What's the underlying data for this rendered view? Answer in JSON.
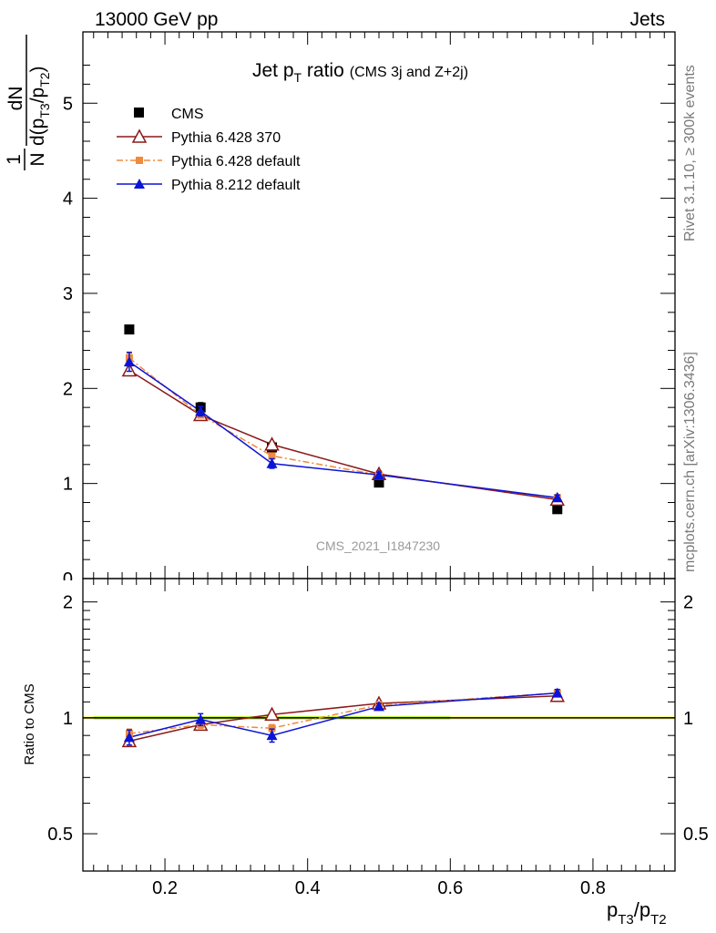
{
  "header": {
    "energy_label": "13000 GeV pp",
    "process_label": "Jets"
  },
  "side_labels": {
    "rivet": "Rivet 3.1.10, ≥ 300k events",
    "mcplots": "mcplots.cern.ch [arXiv:1306.3436]"
  },
  "plot": {
    "title_main": "Jet p",
    "title_sub": "T",
    "title_tail": " ratio",
    "title_note": "(CMS 3j and Z+2j)",
    "watermark": "CMS_2021_I1847230",
    "ylabel_top_num": "1",
    "ylabel_top_den": "N",
    "ylabel_dN": "dN",
    "ylabel_d": "d(p",
    "ylabel_T3": "T3",
    "ylabel_slash": "/p",
    "ylabel_T2": "T2",
    "ylabel_close": ")",
    "ratio_ylabel": "Ratio to CMS",
    "xlabel_p1": "p",
    "xlabel_T3": "T3",
    "xlabel_slash": "/p",
    "xlabel_T2": "T2"
  },
  "colors": {
    "cms": "#000000",
    "py6_370": "#8b1a1a",
    "py6_default": "#f08a3c",
    "py8_default": "#0b14d6",
    "band_green": "#bff23a",
    "band_yellow": "#ffff88"
  },
  "chart_data": [
    {
      "type": "scatter",
      "panel": "main",
      "x": [
        0.15,
        0.25,
        0.35,
        0.5,
        0.75
      ],
      "xlim": [
        0.085,
        0.915
      ],
      "ylim": [
        0,
        5.75
      ],
      "yticks": [
        0,
        1,
        2,
        3,
        4,
        5
      ],
      "ytick_labels": [
        "0",
        "1",
        "2",
        "3",
        "4",
        "5"
      ],
      "legend_position": "top-left",
      "series": [
        {
          "name": "CMS",
          "values": [
            2.62,
            1.8,
            1.38,
            1.01,
            0.73
          ],
          "errors": [
            0.02,
            0.05,
            0.03,
            0.02,
            0.02
          ],
          "marker": "square",
          "color": "#000000"
        },
        {
          "name": "Pythia 6.428 370",
          "values": [
            2.19,
            1.72,
            1.41,
            1.1,
            0.83
          ],
          "errors": [
            0.03,
            0.03,
            0.03,
            0.03,
            0.03
          ],
          "marker": "open-triangle",
          "color": "#8b1a1a"
        },
        {
          "name": "Pythia 6.428 default",
          "values": [
            2.32,
            1.72,
            1.29,
            1.09,
            0.85
          ],
          "errors": [
            0.05,
            0.03,
            0.03,
            0.03,
            0.03
          ],
          "marker": "small-square",
          "color": "#f08a3c",
          "dashed": true
        },
        {
          "name": "Pythia 8.212 default",
          "values": [
            2.28,
            1.76,
            1.21,
            1.09,
            0.85
          ],
          "errors": [
            0.1,
            0.05,
            0.05,
            0.03,
            0.03
          ],
          "marker": "filled-triangle",
          "color": "#0b14d6"
        }
      ]
    },
    {
      "type": "scatter",
      "panel": "ratio",
      "x": [
        0.15,
        0.25,
        0.35,
        0.5,
        0.75
      ],
      "xlim": [
        0.085,
        0.915
      ],
      "ylim": [
        0.4,
        2.3
      ],
      "log_y": true,
      "yticks": [
        0.5,
        1,
        2
      ],
      "ytick_labels": [
        "0.5",
        "1",
        "2"
      ],
      "xticks": [
        0.2,
        0.4,
        0.6,
        0.8
      ],
      "xtick_labels": [
        "0.2",
        "0.4",
        "0.6",
        "0.8"
      ],
      "reference": 1,
      "band_x_range": [
        0.1,
        0.6
      ],
      "series": [
        {
          "name": "Pythia 6.428 370",
          "values": [
            0.87,
            0.96,
            1.02,
            1.09,
            1.14
          ],
          "errors": [
            0.015,
            0.015,
            0.015,
            0.015,
            0.015
          ]
        },
        {
          "name": "Pythia 6.428 default",
          "values": [
            0.91,
            0.96,
            0.94,
            1.08,
            1.16
          ],
          "errors": [
            0.025,
            0.02,
            0.02,
            0.02,
            0.02
          ]
        },
        {
          "name": "Pythia 8.212 default",
          "values": [
            0.89,
            0.99,
            0.9,
            1.07,
            1.16
          ],
          "errors": [
            0.04,
            0.035,
            0.035,
            0.02,
            0.025
          ]
        }
      ]
    }
  ]
}
